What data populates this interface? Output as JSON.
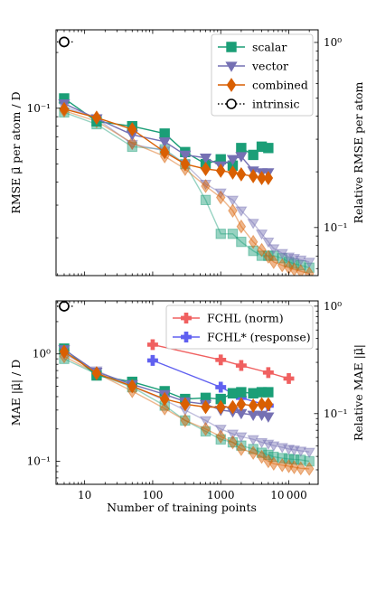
{
  "chart_data": [
    {
      "type": "line",
      "ylabel": "RMSE μ⃗ per atom / D",
      "ylabel_right": "Relative RMSE per atom",
      "xscale": "log",
      "yscale": "log",
      "xlim": [
        3.8,
        27000
      ],
      "ylim": [
        0.0125,
        0.265
      ],
      "right_ylim": [
        0.055,
        1.17
      ],
      "yticks": [
        {
          "v": 0.1,
          "label": "10⁻¹"
        }
      ],
      "right_yticks": [
        {
          "v": 1,
          "label": "10⁰"
        },
        {
          "v": 0.1,
          "label": "10⁻¹"
        }
      ],
      "legend_position": "top-right",
      "legend": [
        {
          "name": "scalar",
          "color": "#1b9e77",
          "marker": "square",
          "style": "solid"
        },
        {
          "name": "vector",
          "color": "#7570b3",
          "marker": "triangle-down",
          "style": "solid"
        },
        {
          "name": "combined",
          "color": "#d95f02",
          "marker": "diamond",
          "style": "solid"
        },
        {
          "name": "intrinsic",
          "color": "#000000",
          "marker": "circle-open",
          "style": "dotted"
        }
      ],
      "series": [
        {
          "name": "scalar",
          "color": "#1b9e77",
          "marker": "square",
          "alpha": 1,
          "x": [
            5,
            15,
            50,
            150,
            300,
            600,
            1000,
            1500,
            2000,
            3000,
            4000,
            5000
          ],
          "y": [
            0.113,
            0.085,
            0.08,
            0.073,
            0.058,
            0.05,
            0.053,
            0.049,
            0.061,
            0.056,
            0.062,
            0.061
          ]
        },
        {
          "name": "vector",
          "color": "#7570b3",
          "marker": "triangle-down",
          "alpha": 1,
          "x": [
            5,
            15,
            50,
            150,
            300,
            600,
            1000,
            1500,
            2000,
            3000,
            4000,
            5000
          ],
          "y": [
            0.106,
            0.088,
            0.072,
            0.066,
            0.056,
            0.054,
            0.049,
            0.053,
            0.055,
            0.046,
            0.045,
            0.045
          ]
        },
        {
          "name": "combined",
          "color": "#d95f02",
          "marker": "diamond",
          "alpha": 1,
          "x": [
            5,
            15,
            50,
            150,
            300,
            600,
            1000,
            1500,
            2000,
            3000,
            4000,
            5000
          ],
          "y": [
            0.099,
            0.089,
            0.077,
            0.058,
            0.05,
            0.047,
            0.046,
            0.045,
            0.044,
            0.043,
            0.042,
            0.042
          ]
        },
        {
          "name": "scalar (light)",
          "color": "#1b9e77",
          "marker": "square",
          "alpha": 0.45,
          "x": [
            5,
            15,
            50,
            150,
            300,
            600,
            1000,
            1500,
            2000,
            3000,
            4000,
            5000,
            6000,
            8000,
            10000,
            12000,
            15000,
            20000
          ],
          "y": [
            0.095,
            0.082,
            0.062,
            0.06,
            0.05,
            0.032,
            0.021,
            0.021,
            0.019,
            0.017,
            0.016,
            0.016,
            0.016,
            0.0155,
            0.0148,
            0.0145,
            0.0142,
            0.0138
          ]
        },
        {
          "name": "vector (light)",
          "color": "#7570b3",
          "marker": "triangle-down",
          "alpha": 0.45,
          "x": [
            5,
            15,
            50,
            150,
            300,
            600,
            1000,
            1500,
            2000,
            3000,
            4000,
            5000,
            6000,
            8000,
            10000,
            12000,
            15000,
            20000
          ],
          "y": [
            0.102,
            0.088,
            0.064,
            0.059,
            0.05,
            0.039,
            0.035,
            0.032,
            0.028,
            0.024,
            0.021,
            0.019,
            0.0175,
            0.0165,
            0.0158,
            0.0155,
            0.0152,
            0.0148
          ]
        },
        {
          "name": "combined (light)",
          "color": "#d95f02",
          "marker": "diamond",
          "alpha": 0.45,
          "x": [
            5,
            15,
            50,
            150,
            300,
            600,
            1000,
            1500,
            2000,
            3000,
            4000,
            5000,
            6000,
            8000,
            10000,
            12000,
            15000,
            20000
          ],
          "y": [
            0.097,
            0.085,
            0.065,
            0.055,
            0.047,
            0.038,
            0.033,
            0.028,
            0.023,
            0.019,
            0.0172,
            0.0158,
            0.0148,
            0.0142,
            0.0138,
            0.0135,
            0.0132,
            0.0128
          ]
        },
        {
          "name": "intrinsic",
          "color": "#000000",
          "marker": "circle-open",
          "style": "dotted",
          "alpha": 1,
          "x": [
            5
          ],
          "y": [
            0.228
          ]
        }
      ]
    },
    {
      "type": "line",
      "xlabel": "Number of training points",
      "ylabel": "MAE |μ⃗| / D",
      "ylabel_right": "Relative MAE |μ⃗|",
      "xscale": "log",
      "yscale": "log",
      "xlim": [
        3.8,
        27000
      ],
      "ylim": [
        0.061,
        3.12
      ],
      "right_ylim": [
        0.022,
        1.12
      ],
      "xticks": [
        {
          "v": 10,
          "label": "10"
        },
        {
          "v": 100,
          "label": "100"
        },
        {
          "v": 1000,
          "label": "1000"
        },
        {
          "v": 10000,
          "label": "10 000"
        }
      ],
      "yticks": [
        {
          "v": 1,
          "label": "10⁰"
        },
        {
          "v": 0.1,
          "label": "10⁻¹"
        }
      ],
      "right_yticks": [
        {
          "v": 1,
          "label": "10⁰"
        },
        {
          "v": 0.1,
          "label": "10⁻¹"
        }
      ],
      "legend_position": "top-right",
      "legend": [
        {
          "name": "FCHL (norm)",
          "color": "#f06060",
          "marker": "plus",
          "style": "solid"
        },
        {
          "name": "FCHL* (response)",
          "color": "#6060f0",
          "marker": "plus",
          "style": "solid"
        }
      ],
      "series": [
        {
          "name": "FCHL (norm)",
          "color": "#f06060",
          "marker": "plus",
          "alpha": 1,
          "x": [
            100,
            1000,
            2000,
            5000,
            10000
          ],
          "y": [
            1.22,
            0.88,
            0.78,
            0.67,
            0.59
          ]
        },
        {
          "name": "FCHL* (response)",
          "color": "#6060f0",
          "marker": "plus",
          "alpha": 1,
          "x": [
            100,
            1000,
            2000,
            5000
          ],
          "y": [
            0.87,
            0.49,
            0.39,
            0.33
          ]
        },
        {
          "name": "scalar",
          "color": "#1b9e77",
          "marker": "square",
          "alpha": 1,
          "x": [
            5,
            15,
            50,
            150,
            300,
            600,
            1000,
            1500,
            2000,
            3000,
            4000,
            5000
          ],
          "y": [
            1.12,
            0.63,
            0.55,
            0.45,
            0.38,
            0.39,
            0.38,
            0.43,
            0.44,
            0.43,
            0.44,
            0.44
          ]
        },
        {
          "name": "vector",
          "color": "#7570b3",
          "marker": "triangle-down",
          "alpha": 1,
          "x": [
            5,
            15,
            50,
            150,
            300,
            600,
            1000,
            1500,
            2000,
            3000,
            4000,
            5000
          ],
          "y": [
            1.1,
            0.68,
            0.52,
            0.42,
            0.36,
            0.34,
            0.3,
            0.29,
            0.28,
            0.27,
            0.27,
            0.26
          ]
        },
        {
          "name": "combined",
          "color": "#d95f02",
          "marker": "diamond",
          "alpha": 1,
          "x": [
            5,
            15,
            50,
            150,
            300,
            600,
            1000,
            1500,
            2000,
            3000,
            4000,
            5000
          ],
          "y": [
            1.05,
            0.66,
            0.5,
            0.38,
            0.34,
            0.32,
            0.32,
            0.32,
            0.34,
            0.33,
            0.34,
            0.34
          ]
        },
        {
          "name": "scalar (light)",
          "color": "#1b9e77",
          "marker": "square",
          "alpha": 0.45,
          "x": [
            5,
            15,
            50,
            150,
            300,
            600,
            1000,
            1500,
            2000,
            3000,
            4000,
            5000,
            6000,
            8000,
            10000,
            12000,
            15000,
            20000
          ],
          "y": [
            0.9,
            0.65,
            0.49,
            0.33,
            0.24,
            0.19,
            0.16,
            0.15,
            0.14,
            0.13,
            0.12,
            0.115,
            0.11,
            0.107,
            0.105,
            0.104,
            0.103,
            0.1
          ]
        },
        {
          "name": "vector (light)",
          "color": "#7570b3",
          "marker": "triangle-down",
          "alpha": 0.45,
          "x": [
            5,
            15,
            50,
            150,
            300,
            600,
            1000,
            1500,
            2000,
            3000,
            4000,
            5000,
            6000,
            8000,
            10000,
            12000,
            15000,
            20000
          ],
          "y": [
            1.0,
            0.7,
            0.5,
            0.37,
            0.3,
            0.24,
            0.2,
            0.18,
            0.17,
            0.16,
            0.15,
            0.145,
            0.14,
            0.135,
            0.13,
            0.128,
            0.125,
            0.122
          ]
        },
        {
          "name": "combined (light)",
          "color": "#d95f02",
          "marker": "diamond",
          "alpha": 0.45,
          "x": [
            5,
            15,
            50,
            150,
            300,
            600,
            1000,
            1500,
            2000,
            3000,
            4000,
            5000,
            6000,
            8000,
            10000,
            12000,
            15000,
            20000
          ],
          "y": [
            0.95,
            0.66,
            0.45,
            0.31,
            0.24,
            0.2,
            0.17,
            0.15,
            0.13,
            0.12,
            0.11,
            0.1,
            0.095,
            0.092,
            0.09,
            0.088,
            0.086,
            0.085
          ]
        },
        {
          "name": "intrinsic",
          "color": "#000000",
          "marker": "circle-open",
          "style": "dotted",
          "alpha": 1,
          "x": [
            5
          ],
          "y": [
            2.78
          ]
        }
      ]
    }
  ]
}
